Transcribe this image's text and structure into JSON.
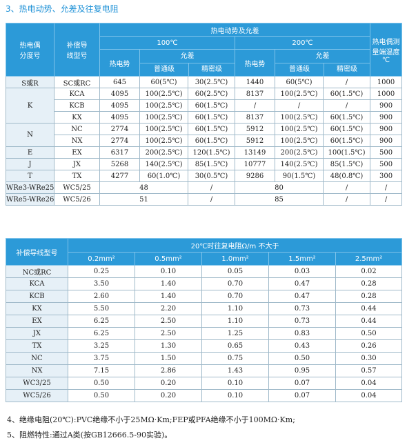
{
  "heading": "3、热电动势、允差及往复电阻",
  "table1": {
    "h_type_line1": "热电偶",
    "h_type_line2": "分度号",
    "h_comp_line1": "补偿导",
    "h_comp_line2": "线型号",
    "h_emf_group": "热电动势及允差",
    "h_range_line1": "热电偶测",
    "h_range_line2": "量端温度",
    "h_range_line3": "℃",
    "h_100c": "100℃",
    "h_200c": "200℃",
    "h_emf": "热电势",
    "h_tol": "允差",
    "h_normal": "普通级",
    "h_precision": "精密级",
    "groups": [
      {
        "thermo": "S或R",
        "rows": [
          [
            "SC或RC",
            "645",
            "60(5℃)",
            "30(2.5℃)",
            "1440",
            "60(5℃)",
            "/",
            "1000"
          ]
        ]
      },
      {
        "thermo": "K",
        "rows": [
          [
            "KCA",
            "4095",
            "100(2.5℃)",
            "60(2.5℃)",
            "8137",
            "100(2.5℃)",
            "60(1.5℃)",
            "1000"
          ],
          [
            "KCB",
            "4095",
            "100(2.5℃)",
            "60(1.5℃)",
            "/",
            "/",
            "/",
            "900"
          ],
          [
            "KX",
            "4095",
            "100(2.5℃)",
            "60(1.5℃)",
            "8137",
            "100(2.5℃)",
            "60(1.5℃)",
            "900"
          ]
        ]
      },
      {
        "thermo": "N",
        "rows": [
          [
            "NC",
            "2774",
            "100(2.5℃)",
            "60(1.5℃)",
            "5912",
            "100(2.5℃)",
            "60(1.5℃)",
            "900"
          ],
          [
            "NX",
            "2774",
            "100(2.5℃)",
            "60(1.5℃)",
            "5912",
            "100(2.5℃)",
            "60(1.5℃)",
            "900"
          ]
        ]
      },
      {
        "thermo": "E",
        "rows": [
          [
            "EX",
            "6317",
            "200(2.5℃)",
            "120(1.5℃)",
            "13149",
            "200(2.5℃)",
            "100(1.5℃)",
            "500"
          ]
        ]
      },
      {
        "thermo": "J",
        "rows": [
          [
            "JX",
            "5268",
            "140(2.5℃)",
            "85(1.5℃)",
            "10777",
            "140(2.5℃)",
            "85(1.5℃)",
            "500"
          ]
        ]
      },
      {
        "thermo": "T",
        "rows": [
          [
            "TX",
            "4277",
            "60(1.0℃)",
            "30(0.5℃)",
            "9286",
            "90(1.5℃)",
            "48(0.8℃)",
            "300"
          ]
        ]
      }
    ],
    "wre_rows": [
      [
        "WRe3-WRe25",
        "WC5/25",
        "48",
        "/",
        "80",
        "/",
        "/"
      ],
      [
        "WRe5-WRe26",
        "WC5/26",
        "51",
        "/",
        "85",
        "/",
        "/"
      ]
    ]
  },
  "table2": {
    "h_model": "补偿导线型号",
    "h_group": "20℃时往复电阻Ω/m 不大于",
    "sizes": [
      "0.2mm²",
      "0.5mm²",
      "1.0mm²",
      "1.5mm²",
      "2.5mm²"
    ],
    "rows": [
      [
        "NC或RC",
        "0.25",
        "0.10",
        "0.05",
        "0.03",
        "0.02"
      ],
      [
        "KCA",
        "3.50",
        "1.40",
        "0.70",
        "0.47",
        "0.28"
      ],
      [
        "KCB",
        "2.60",
        "1.40",
        "0.70",
        "0.47",
        "0.28"
      ],
      [
        "KX",
        "5.50",
        "2.20",
        "1.10",
        "0.73",
        "0.44"
      ],
      [
        "EX",
        "6.25",
        "2.50",
        "1.10",
        "0.73",
        "0.44"
      ],
      [
        "JX",
        "6.25",
        "2.50",
        "1.25",
        "0.83",
        "0.50"
      ],
      [
        "TX",
        "3.25",
        "1.30",
        "0.65",
        "0.43",
        "0.26"
      ],
      [
        "NC",
        "3.75",
        "1.50",
        "0.75",
        "0.50",
        "0.30"
      ],
      [
        "NX",
        "7.15",
        "2.86",
        "1.43",
        "0.95",
        "0.57"
      ],
      [
        "WC3/25",
        "0.50",
        "0.20",
        "0.10",
        "0.07",
        "0.04"
      ],
      [
        "WC5/26",
        "0.50",
        "0.20",
        "0.10",
        "0.07",
        "0.04"
      ]
    ]
  },
  "note4": "4、绝缘电阻(20℃):PVC绝缘不小于25MΩ·Km;FEP或PFA绝缘不小于100MΩ·Km;",
  "note5": "5、阻燃特性:通过A类(按GB12666.5-90实验)。"
}
